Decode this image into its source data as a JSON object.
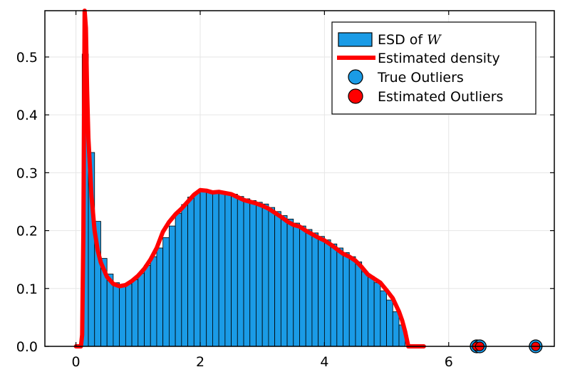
{
  "chart_data": {
    "type": "bar",
    "xlim": [
      -0.5,
      7.7
    ],
    "ylim": [
      0,
      0.58
    ],
    "x_ticks": [
      0,
      2,
      4,
      6
    ],
    "x_tick_labels": [
      "0",
      "2",
      "4",
      "6"
    ],
    "y_ticks": [
      0.0,
      0.1,
      0.2,
      0.3,
      0.4,
      0.5
    ],
    "y_tick_labels": [
      "0.0",
      "0.1",
      "0.2",
      "0.3",
      "0.4",
      "0.5"
    ],
    "grid": true,
    "legend_position": "top-right",
    "colors": {
      "histogram": "#1a9be6",
      "density": "#ff0000",
      "true_outliers": "#1a9be6",
      "estimated_outliers": "#ff0000",
      "grid": "#e6e6e6"
    },
    "legend": [
      {
        "label_prefix": "ESD of ",
        "label_math": "W",
        "kind": "bar"
      },
      {
        "label": "Estimated density",
        "kind": "line"
      },
      {
        "label": "True Outliers",
        "kind": "marker"
      },
      {
        "label": "Estimated Outliers",
        "kind": "marker"
      }
    ],
    "histogram": {
      "bin_width": 0.1,
      "bin_starts": [
        0.1,
        0.2,
        0.3,
        0.4,
        0.5,
        0.6,
        0.7,
        0.8,
        0.9,
        1.0,
        1.1,
        1.2,
        1.3,
        1.4,
        1.5,
        1.6,
        1.7,
        1.8,
        1.9,
        2.0,
        2.1,
        2.2,
        2.3,
        2.4,
        2.5,
        2.6,
        2.7,
        2.8,
        2.9,
        3.0,
        3.1,
        3.2,
        3.3,
        3.4,
        3.5,
        3.6,
        3.7,
        3.8,
        3.9,
        4.0,
        4.1,
        4.2,
        4.3,
        4.4,
        4.5,
        4.6,
        4.7,
        4.8,
        4.9,
        5.0,
        5.1,
        5.2
      ],
      "values": [
        0.505,
        0.335,
        0.216,
        0.152,
        0.125,
        0.11,
        0.106,
        0.108,
        0.115,
        0.126,
        0.14,
        0.155,
        0.17,
        0.188,
        0.208,
        0.23,
        0.245,
        0.258,
        0.266,
        0.269,
        0.268,
        0.266,
        0.266,
        0.265,
        0.263,
        0.259,
        0.255,
        0.252,
        0.249,
        0.246,
        0.24,
        0.233,
        0.226,
        0.22,
        0.213,
        0.208,
        0.202,
        0.196,
        0.19,
        0.184,
        0.177,
        0.17,
        0.162,
        0.155,
        0.146,
        0.129,
        0.121,
        0.11,
        0.096,
        0.08,
        0.06,
        0.037
      ]
    },
    "density_curve": {
      "x": [
        0.0,
        0.05,
        0.08,
        0.1,
        0.12,
        0.14,
        0.16,
        0.18,
        0.2,
        0.25,
        0.3,
        0.35,
        0.4,
        0.5,
        0.6,
        0.7,
        0.8,
        0.9,
        1.0,
        1.1,
        1.2,
        1.3,
        1.4,
        1.5,
        1.6,
        1.7,
        1.8,
        1.9,
        2.0,
        2.1,
        2.2,
        2.3,
        2.4,
        2.5,
        2.6,
        2.7,
        2.8,
        2.9,
        3.0,
        3.1,
        3.2,
        3.3,
        3.4,
        3.5,
        3.6,
        3.7,
        3.8,
        3.9,
        4.0,
        4.1,
        4.2,
        4.3,
        4.4,
        4.5,
        4.6,
        4.7,
        4.8,
        4.9,
        5.0,
        5.1,
        5.2,
        5.25,
        5.3,
        5.35,
        5.4,
        5.5,
        5.6
      ],
      "y": [
        0.0,
        0.0,
        0.0,
        0.02,
        0.2,
        0.58,
        0.55,
        0.44,
        0.36,
        0.26,
        0.2,
        0.166,
        0.145,
        0.12,
        0.108,
        0.104,
        0.106,
        0.113,
        0.122,
        0.134,
        0.15,
        0.17,
        0.198,
        0.215,
        0.228,
        0.238,
        0.25,
        0.262,
        0.27,
        0.269,
        0.266,
        0.267,
        0.265,
        0.263,
        0.258,
        0.253,
        0.25,
        0.247,
        0.243,
        0.238,
        0.231,
        0.224,
        0.216,
        0.21,
        0.207,
        0.2,
        0.194,
        0.188,
        0.183,
        0.176,
        0.168,
        0.16,
        0.155,
        0.148,
        0.137,
        0.124,
        0.117,
        0.11,
        0.097,
        0.083,
        0.06,
        0.045,
        0.025,
        0.0,
        0.0,
        0.0,
        0.0
      ]
    },
    "true_outliers": [
      6.45,
      6.5,
      7.4
    ],
    "estimated_outliers": [
      6.45,
      6.5,
      7.4
    ]
  }
}
